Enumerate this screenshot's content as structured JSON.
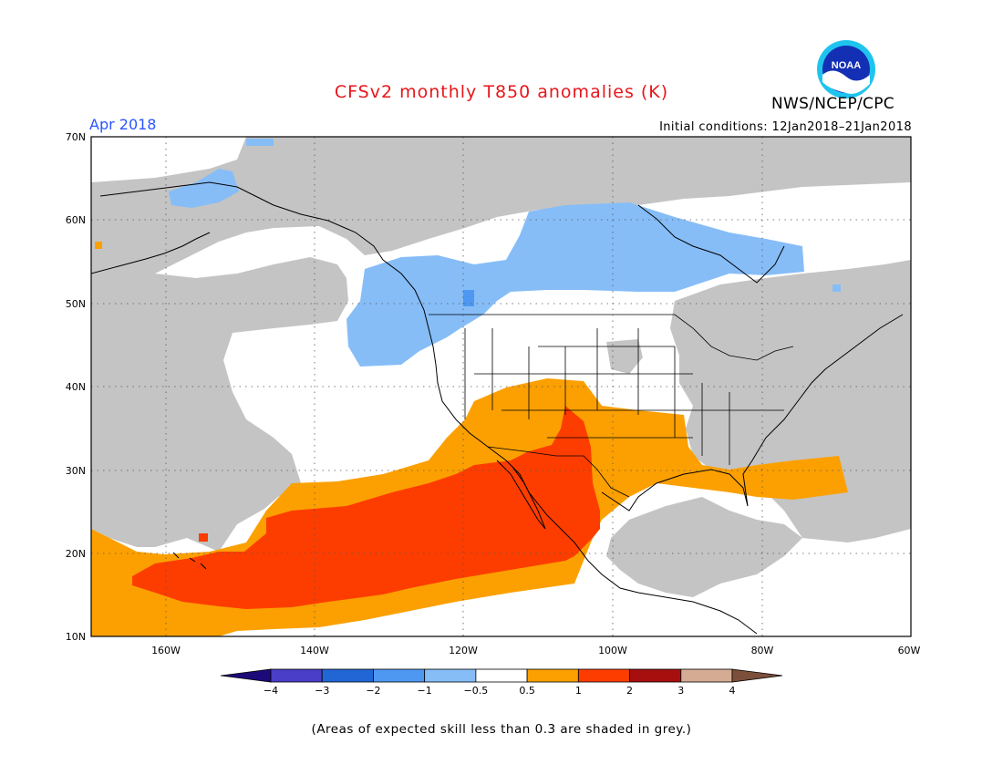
{
  "title": "CFSv2 monthly T850 anomalies (K)",
  "agency": "NWS/NCEP/CPC",
  "logo_text": "NOAA",
  "valid_month": "Apr 2018",
  "initial_conditions": "Initial conditions: 12Jan2018–21Jan2018",
  "footer_note": "(Areas of expected skill less than 0.3 are shaded in grey.)",
  "map": {
    "lat_labels": [
      "70N",
      "60N",
      "50N",
      "40N",
      "30N",
      "20N",
      "10N"
    ],
    "lon_labels": [
      "160W",
      "140W",
      "120W",
      "100W",
      "80W",
      "60W"
    ],
    "lon_range": [
      -170,
      -60
    ],
    "lat_range": [
      10,
      70
    ],
    "gridlines": "dotted"
  },
  "colorbar": {
    "labels": [
      "−4",
      "−3",
      "−2",
      "−1",
      "−0.5",
      "0.5",
      "1",
      "2",
      "3",
      "4"
    ],
    "bins": [
      {
        "color": "#1c0a7a",
        "range": "< -4"
      },
      {
        "color": "#4a3dc8",
        "range": "-4 to -3"
      },
      {
        "color": "#2266d6",
        "range": "-3 to -2"
      },
      {
        "color": "#4f98f2",
        "range": "-2 to -1"
      },
      {
        "color": "#86bdf7",
        "range": "-1 to -0.5"
      },
      {
        "color": "#ffffff",
        "range": "-0.5 to 0.5"
      },
      {
        "color": "#fba000",
        "range": "0.5 to 1"
      },
      {
        "color": "#fd3d00",
        "range": "1 to 2"
      },
      {
        "color": "#a70e0e",
        "range": "2 to 3"
      },
      {
        "color": "#d6ab94",
        "range": "3 to 4"
      },
      {
        "color": "#7c4f3a",
        "range": "> 4"
      }
    ]
  },
  "colors": {
    "skill_grey": "#c4c4c4",
    "blue": "#86bdf7",
    "blue_dark": "#4f98f2",
    "orange": "#fba000",
    "red": "#fd3d00"
  }
}
